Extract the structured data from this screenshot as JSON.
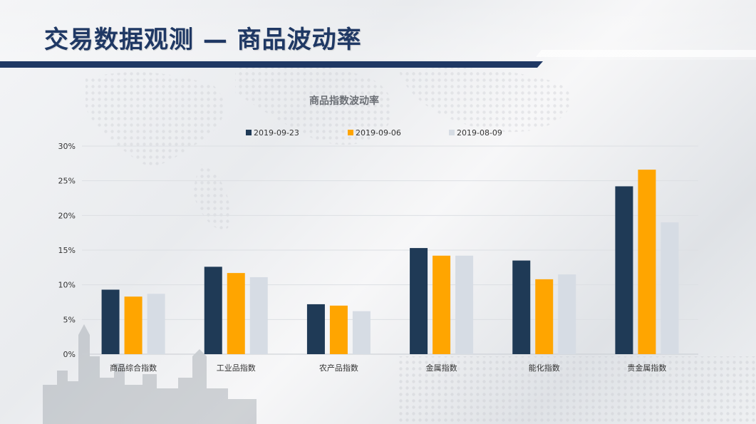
{
  "header": {
    "title": "交易数据观测 — 商品波动率"
  },
  "colors": {
    "title": "#1f3864",
    "header_bar": "#1f3864",
    "series": [
      "#1f3a56",
      "#ffa500",
      "#d6dce4"
    ]
  },
  "chart_data": {
    "type": "bar",
    "title": "商品指数波动率",
    "categories": [
      "商品综合指数",
      "工业品指数",
      "农产品指数",
      "金属指数",
      "能化指数",
      "贵金属指数"
    ],
    "series": [
      {
        "name": "2019-09-23",
        "values": [
          9.3,
          12.6,
          7.2,
          15.3,
          13.5,
          24.2
        ]
      },
      {
        "name": "2019-09-06",
        "values": [
          8.3,
          11.7,
          7.0,
          14.2,
          10.8,
          26.6
        ]
      },
      {
        "name": "2019-08-09",
        "values": [
          8.7,
          11.1,
          6.2,
          14.2,
          11.5,
          19.0
        ]
      }
    ],
    "ylim": [
      0,
      30
    ],
    "yticks": [
      "0%",
      "5%",
      "10%",
      "15%",
      "20%",
      "25%",
      "30%"
    ],
    "grid": true,
    "legend": "top"
  }
}
